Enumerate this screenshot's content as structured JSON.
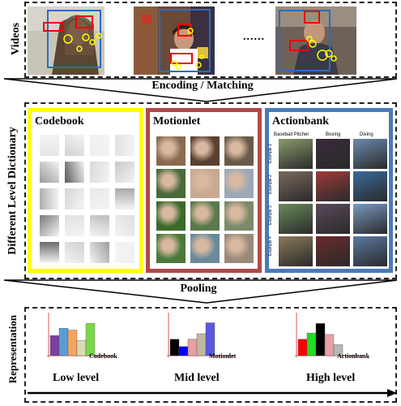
{
  "sections": {
    "videos_label": "Videos",
    "dictionary_label": "Different Level Dictionary",
    "representation_label": "Representation"
  },
  "arrows": {
    "encoding": "Encoding / Matching",
    "pooling": "Pooling"
  },
  "videos": {
    "ellipsis": "......"
  },
  "dictionaries": {
    "codebook": {
      "title": "Codebook",
      "color": "#ffff00"
    },
    "motionlet": {
      "title": "Motionlet",
      "color": "#b04a4a"
    },
    "actionbank": {
      "title": "Actionbank",
      "color": "#4a7ab8",
      "columns": [
        "Baseball Pitcher",
        "Boxing",
        "Diving"
      ],
      "rows": [
        "Example 1",
        "Example 2",
        "Example 3",
        "Example 4"
      ]
    }
  },
  "histograms": [
    {
      "caption": "Codebook",
      "level": "Low level",
      "bars": [
        {
          "value": 0.55,
          "color": "#7b3fa0"
        },
        {
          "value": 0.75,
          "color": "#5b9bd5"
        },
        {
          "value": 0.7,
          "color": "#f4a460"
        },
        {
          "value": 0.42,
          "color": "#d9d9b3"
        },
        {
          "value": 0.88,
          "color": "#7cd64b"
        }
      ]
    },
    {
      "caption": "Motionlet",
      "level": "Mid level",
      "bars": [
        {
          "value": 0.45,
          "color": "#000000"
        },
        {
          "value": 0.25,
          "color": "#0000ff"
        },
        {
          "value": 0.45,
          "color": "#e8a0a0"
        },
        {
          "value": 0.6,
          "color": "#c0b8a0"
        },
        {
          "value": 0.9,
          "color": "#5a5ae0"
        }
      ]
    },
    {
      "caption": "Actionbank",
      "level": "High level",
      "bars": [
        {
          "value": 0.45,
          "color": "#ff0000"
        },
        {
          "value": 0.62,
          "color": "#22dd22"
        },
        {
          "value": 0.88,
          "color": "#000000"
        },
        {
          "value": 0.58,
          "color": "#e8a0a8"
        },
        {
          "value": 0.3,
          "color": "#b8b8b8"
        }
      ]
    }
  ],
  "arrow_axis_label": ""
}
